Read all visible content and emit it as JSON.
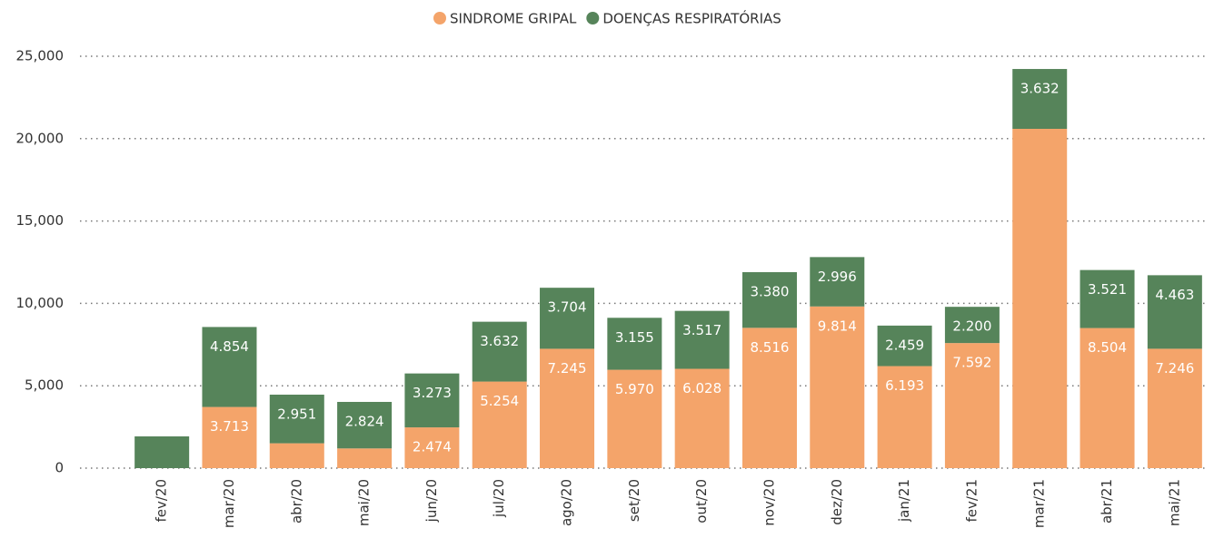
{
  "chart_data": {
    "type": "stacked-bar",
    "categories": [
      "fev/20",
      "mar/20",
      "abr/20",
      "mai/20",
      "jun/20",
      "jul/20",
      "ago/20",
      "set/20",
      "out/20",
      "nov/20",
      "dez/20",
      "jan/21",
      "fev/21",
      "mar/21",
      "abr/21",
      "mai/21"
    ],
    "series": [
      {
        "name": "SINDROME GRIPAL",
        "color": "#f4a46a",
        "values": [
          null,
          3713,
          1509,
          1196,
          2474,
          5254,
          7245,
          5970,
          6028,
          8516,
          9814,
          6193,
          7592,
          20595,
          8504,
          7246
        ],
        "value_labels": [
          null,
          "3.713",
          null,
          null,
          "2.474",
          "5.254",
          "7.245",
          "5.970",
          "6.028",
          "8.516",
          "9.814",
          "6.193",
          "7.592",
          null,
          "8.504",
          "7.246"
        ]
      },
      {
        "name": "DOENÇAS RESPIRATÓRIAS",
        "color": "#56845a",
        "values": [
          1927,
          4854,
          2951,
          2824,
          3273,
          3632,
          3704,
          3155,
          3517,
          3380,
          2996,
          2459,
          2200,
          3632,
          3521,
          4463
        ],
        "value_labels": [
          null,
          "4.854",
          "2.951",
          "2.824",
          "3.273",
          "3.632",
          "3.704",
          "3.155",
          "3.517",
          "3.380",
          "2.996",
          "2.459",
          "2.200",
          "3.632",
          "3.521",
          "4.463"
        ]
      }
    ],
    "ylim": [
      0,
      25000
    ],
    "yticks": [
      0,
      {
        "value": 5000,
        "label": "5,000"
      },
      {
        "value": 10000,
        "label": "10,000"
      },
      {
        "value": 15000,
        "label": "15,000"
      },
      {
        "value": 20000,
        "label": "20,000"
      },
      {
        "value": 25000,
        "label": "25,000"
      }
    ],
    "grid": true
  }
}
